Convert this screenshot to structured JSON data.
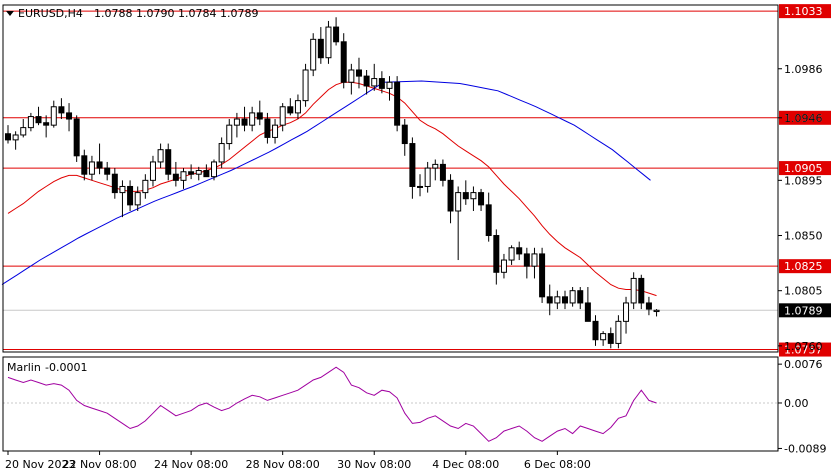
{
  "header": {
    "symbol": "EURUSD,H4",
    "ohlc": "1.0788 1.0790 1.0784 1.0789"
  },
  "colors": {
    "level": "#e00000",
    "ma_fast": "#e00000",
    "ma_slow": "#0000e0",
    "indicator": "#a000a0",
    "grid": "#c8c8c8"
  },
  "chart_data": [
    {
      "type": "candlestick",
      "symbol": "EURUSD",
      "timeframe": "H4",
      "ylim": [
        1.0755,
        1.1038
      ],
      "y_ticks": [
        {
          "value": 1.0986,
          "label": "1.0986"
        },
        {
          "value": 1.0946,
          "label": "1.0946"
        },
        {
          "value": 1.0895,
          "label": "1.0895"
        },
        {
          "value": 1.085,
          "label": "1.0850"
        },
        {
          "value": 1.0805,
          "label": "1.0805"
        },
        {
          "value": 1.076,
          "label": "1.0760"
        }
      ],
      "x_ticks": [
        "20 Nov 2023",
        "22 Nov 08:00",
        "24 Nov 08:00",
        "28 Nov 08:00",
        "30 Nov 08:00",
        "4 Dec 08:00",
        "6 Dec 08:00"
      ],
      "levels": [
        {
          "value": 1.1033,
          "label": "1.1033"
        },
        {
          "value": 1.0946,
          "label": "1.0946"
        },
        {
          "value": 1.0905,
          "label": "1.0905"
        },
        {
          "value": 1.0825,
          "label": "1.0825"
        },
        {
          "value": 1.0757,
          "label": "1.0757"
        }
      ],
      "current_price": {
        "value": 1.0789,
        "label": "1.0789"
      },
      "candles": [
        [
          1.0933,
          1.094,
          1.0925,
          1.0928
        ],
        [
          1.0928,
          1.0935,
          1.092,
          1.0932
        ],
        [
          1.0932,
          1.0945,
          1.093,
          1.0938
        ],
        [
          1.0938,
          1.095,
          1.0935,
          1.0947
        ],
        [
          1.0947,
          1.0955,
          1.094,
          1.0942
        ],
        [
          1.0942,
          1.0948,
          1.093,
          1.094
        ],
        [
          1.094,
          1.096,
          1.0938,
          1.0955
        ],
        [
          1.0955,
          1.0962,
          1.0945,
          1.095
        ],
        [
          1.095,
          1.0958,
          1.0935,
          1.0945
        ],
        [
          1.0945,
          1.0948,
          1.091,
          1.0915
        ],
        [
          1.0915,
          1.092,
          1.0895,
          1.09
        ],
        [
          1.09,
          1.0915,
          1.0895,
          1.091
        ],
        [
          1.091,
          1.0925,
          1.09,
          1.0905
        ],
        [
          1.0905,
          1.091,
          1.0895,
          1.09
        ],
        [
          1.09,
          1.0905,
          1.088,
          1.0885
        ],
        [
          1.0885,
          1.0895,
          1.0865,
          1.089
        ],
        [
          1.089,
          1.0895,
          1.087,
          1.0875
        ],
        [
          1.0875,
          1.089,
          1.087,
          1.0885
        ],
        [
          1.0885,
          1.09,
          1.088,
          1.0895
        ],
        [
          1.0895,
          1.0915,
          1.089,
          1.091
        ],
        [
          1.091,
          1.0925,
          1.0905,
          1.092
        ],
        [
          1.092,
          1.0925,
          1.0895,
          1.09
        ],
        [
          1.09,
          1.091,
          1.089,
          1.0895
        ],
        [
          1.0895,
          1.0905,
          1.0888,
          1.0902
        ],
        [
          1.0902,
          1.0908,
          1.0896,
          1.09
        ],
        [
          1.09,
          1.0906,
          1.0895,
          1.0903
        ],
        [
          1.0903,
          1.0908,
          1.0898,
          1.0898
        ],
        [
          1.0898,
          1.0912,
          1.0895,
          1.091
        ],
        [
          1.091,
          1.093,
          1.0905,
          1.0925
        ],
        [
          1.0925,
          1.0945,
          1.092,
          1.094
        ],
        [
          1.094,
          1.095,
          1.093,
          1.0945
        ],
        [
          1.0945,
          1.0955,
          1.0935,
          1.094
        ],
        [
          1.094,
          1.0955,
          1.0935,
          1.095
        ],
        [
          1.095,
          1.096,
          1.094,
          1.0945
        ],
        [
          1.0945,
          1.095,
          1.0925,
          1.093
        ],
        [
          1.093,
          1.0945,
          1.0925,
          1.094
        ],
        [
          1.094,
          1.0958,
          1.0935,
          1.0955
        ],
        [
          1.0955,
          1.0962,
          1.0948,
          1.095
        ],
        [
          1.095,
          1.0965,
          1.0945,
          1.096
        ],
        [
          1.096,
          1.099,
          1.0955,
          1.0985
        ],
        [
          1.0985,
          1.1015,
          1.098,
          1.101
        ],
        [
          1.101,
          1.102,
          1.099,
          1.0995
        ],
        [
          1.0995,
          1.1025,
          1.099,
          1.102
        ],
        [
          1.102,
          1.1028,
          1.1005,
          1.1008
        ],
        [
          1.1008,
          1.1015,
          1.097,
          1.0975
        ],
        [
          1.0975,
          1.099,
          1.0965,
          1.0985
        ],
        [
          1.0985,
          1.0995,
          1.097,
          1.098
        ],
        [
          1.098,
          1.0985,
          1.0965,
          1.0972
        ],
        [
          1.0972,
          1.099,
          1.0968,
          1.0978
        ],
        [
          1.0978,
          1.0984,
          1.0966,
          1.097
        ],
        [
          1.097,
          1.098,
          1.096,
          1.0975
        ],
        [
          1.0975,
          1.098,
          1.0935,
          1.094
        ],
        [
          1.094,
          1.0945,
          1.0915,
          1.0925
        ],
        [
          1.0925,
          1.093,
          1.088,
          1.089
        ],
        [
          1.089,
          1.09,
          1.0882,
          1.089
        ],
        [
          1.089,
          1.091,
          1.0885,
          1.0905
        ],
        [
          1.0905,
          1.0912,
          1.0895,
          1.0908
        ],
        [
          1.0908,
          1.0912,
          1.089,
          1.0895
        ],
        [
          1.0895,
          1.09,
          1.086,
          1.087
        ],
        [
          1.087,
          1.089,
          1.083,
          1.0885
        ],
        [
          1.0885,
          1.0895,
          1.0875,
          1.088
        ],
        [
          1.088,
          1.089,
          1.087,
          1.0885
        ],
        [
          1.0885,
          1.0888,
          1.087,
          1.0875
        ],
        [
          1.0875,
          1.0885,
          1.0845,
          1.085
        ],
        [
          1.085,
          1.0855,
          1.081,
          1.082
        ],
        [
          1.082,
          1.0835,
          1.0815,
          1.083
        ],
        [
          1.083,
          1.0842,
          1.0826,
          1.084
        ],
        [
          1.084,
          1.0845,
          1.083,
          1.0835
        ],
        [
          1.0835,
          1.084,
          1.0815,
          1.0825
        ],
        [
          1.0825,
          1.084,
          1.0815,
          1.0835
        ],
        [
          1.0835,
          1.084,
          1.0795,
          1.08
        ],
        [
          1.08,
          1.081,
          1.0785,
          1.0795
        ],
        [
          1.0795,
          1.0805,
          1.079,
          1.08
        ],
        [
          1.08,
          1.0805,
          1.079,
          1.0795
        ],
        [
          1.0795,
          1.0808,
          1.0792,
          1.0805
        ],
        [
          1.0805,
          1.0808,
          1.079,
          1.0795
        ],
        [
          1.0795,
          1.0808,
          1.078,
          1.078
        ],
        [
          1.078,
          1.0785,
          1.076,
          1.0765
        ],
        [
          1.0765,
          1.0772,
          1.076,
          1.077
        ],
        [
          1.077,
          1.0775,
          1.0758,
          1.0762
        ],
        [
          1.0762,
          1.0785,
          1.0758,
          1.078
        ],
        [
          1.078,
          1.08,
          1.077,
          1.0795
        ],
        [
          1.0795,
          1.082,
          1.079,
          1.0815
        ],
        [
          1.0815,
          1.0818,
          1.079,
          1.0795
        ],
        [
          1.0795,
          1.08,
          1.0785,
          1.079
        ],
        [
          1.0788,
          1.079,
          1.0784,
          1.0789
        ]
      ],
      "ma_fast": [
        1.0868,
        1.0872,
        1.0876,
        1.0881,
        1.0886,
        1.089,
        1.0894,
        1.0897,
        1.0899,
        1.0899,
        1.0897,
        1.0895,
        1.0893,
        1.0891,
        1.0889,
        1.0887,
        1.0886,
        1.0886,
        1.0887,
        1.0889,
        1.0892,
        1.0894,
        1.0896,
        1.0898,
        1.09,
        1.0901,
        1.0903,
        1.0905,
        1.0908,
        1.0912,
        1.0917,
        1.0922,
        1.0927,
        1.0932,
        1.0935,
        1.0937,
        1.094,
        1.0942,
        1.0945,
        1.095,
        1.0957,
        1.0963,
        1.0969,
        1.0973,
        1.0975,
        1.0975,
        1.0974,
        1.0972,
        1.097,
        1.0968,
        1.0966,
        1.0963,
        1.0958,
        1.0951,
        1.0944,
        1.094,
        1.0937,
        1.0933,
        1.0928,
        1.0923,
        1.0919,
        1.0915,
        1.0911,
        1.0906,
        1.0899,
        1.0892,
        1.0886,
        1.088,
        1.0873,
        1.0866,
        1.0858,
        1.0851,
        1.0845,
        1.084,
        1.0836,
        1.0832,
        1.0826,
        1.082,
        1.0815,
        1.081,
        1.0807,
        1.0806,
        1.0806,
        1.0805,
        1.0803,
        1.0801
      ],
      "ma_slow_points": [
        [
          0,
          1.081
        ],
        [
          5,
          1.083
        ],
        [
          10,
          1.0848
        ],
        [
          15,
          1.0864
        ],
        [
          20,
          1.0878
        ],
        [
          25,
          1.089
        ],
        [
          30,
          1.0903
        ],
        [
          35,
          1.0918
        ],
        [
          40,
          1.0935
        ],
        [
          45,
          1.0955
        ],
        [
          50,
          1.0975
        ],
        [
          55,
          1.0976
        ],
        [
          60,
          1.0974
        ],
        [
          65,
          1.0968
        ],
        [
          70,
          1.0955
        ],
        [
          75,
          1.094
        ],
        [
          80,
          1.092
        ],
        [
          85,
          1.0895
        ]
      ],
      "indicator": {
        "name": "Marlin",
        "value_label": "-0.0001",
        "ylim": [
          -0.0094,
          0.009
        ],
        "y_ticks": [
          {
            "value": 0.0076,
            "label": "0.0076"
          },
          {
            "value": 0.0,
            "label": "0.00"
          },
          {
            "value": -0.0089,
            "label": "-0.0089"
          }
        ],
        "values": [
          0.005,
          0.0045,
          0.004,
          0.0045,
          0.004,
          0.0035,
          0.0038,
          0.0035,
          0.0025,
          0.0005,
          -0.0005,
          -0.001,
          -0.0015,
          -0.002,
          -0.003,
          -0.004,
          -0.005,
          -0.0045,
          -0.0035,
          -0.002,
          -0.0005,
          -0.0015,
          -0.0025,
          -0.002,
          -0.0015,
          -0.0005,
          0.0,
          -0.0008,
          -0.0015,
          -0.001,
          0.0,
          0.0008,
          0.0015,
          0.0012,
          0.0005,
          0.001,
          0.0015,
          0.002,
          0.0025,
          0.0035,
          0.0045,
          0.005,
          0.006,
          0.007,
          0.006,
          0.0035,
          0.003,
          0.002,
          0.0015,
          0.0025,
          0.0022,
          0.001,
          -0.002,
          -0.004,
          -0.0038,
          -0.003,
          -0.0025,
          -0.0035,
          -0.0045,
          -0.005,
          -0.004,
          -0.0045,
          -0.006,
          -0.0075,
          -0.0068,
          -0.0055,
          -0.005,
          -0.0045,
          -0.0055,
          -0.0068,
          -0.0075,
          -0.0065,
          -0.0055,
          -0.005,
          -0.006,
          -0.0045,
          -0.005,
          -0.0055,
          -0.006,
          -0.0048,
          -0.003,
          -0.0025,
          0.0005,
          0.0025,
          0.0005,
          0.0
        ]
      }
    }
  ]
}
